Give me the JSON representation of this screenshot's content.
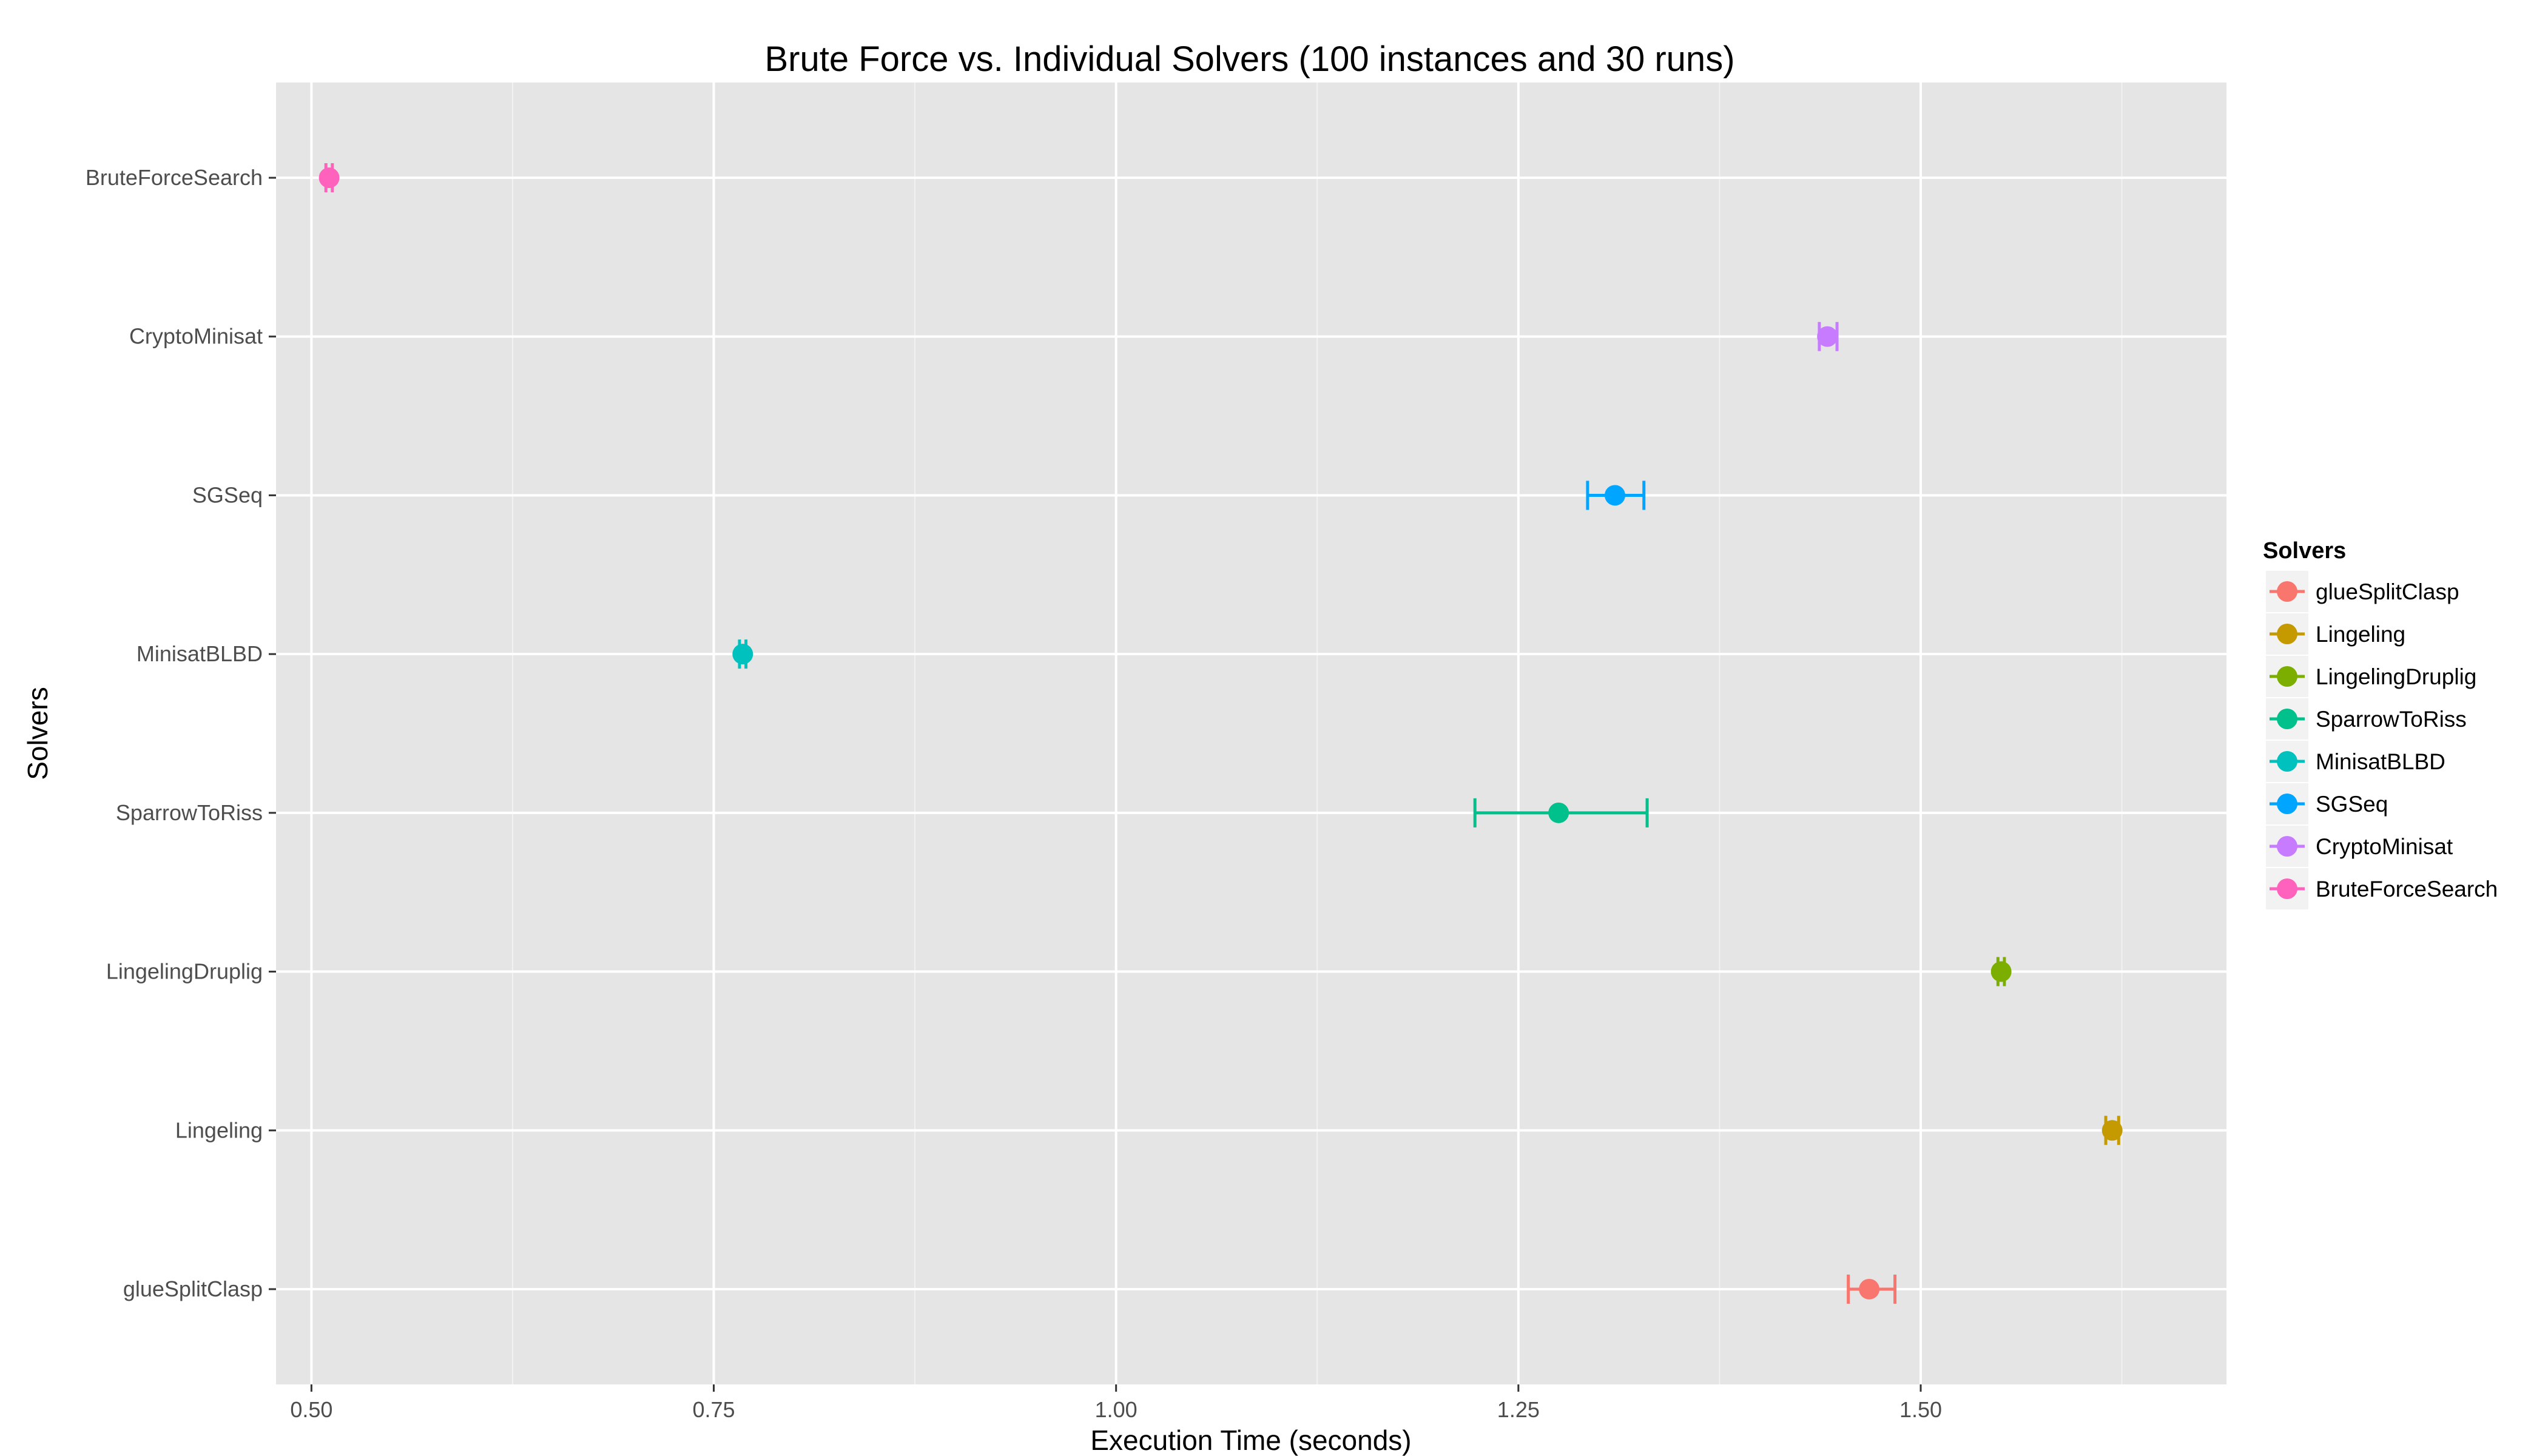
{
  "chart_data": {
    "type": "scatter",
    "title": "Brute Force vs. Individual Solvers (100 instances and 30 runs)",
    "xlabel": "Execution Time (seconds)",
    "ylabel": "Solvers",
    "xlim": [
      0.478,
      1.69
    ],
    "x_ticks": [
      0.5,
      0.75,
      1.0,
      1.25,
      1.5
    ],
    "x_tick_labels": [
      "0.50",
      "0.75",
      "1.00",
      "1.25",
      "1.50"
    ],
    "grid": true,
    "categories": [
      "BruteForceSearch",
      "CryptoMinisat",
      "SGSeq",
      "MinisatBLBD",
      "SparrowToRiss",
      "LingelingDruplig",
      "Lingeling",
      "glueSplitClasp"
    ],
    "series": [
      {
        "name": "glueSplitClasp",
        "color": "#F8766D",
        "value": 1.468,
        "error_low": 1.455,
        "error_high": 1.484
      },
      {
        "name": "Lingeling",
        "color": "#C49A00",
        "value": 1.619,
        "error_low": 1.615,
        "error_high": 1.623
      },
      {
        "name": "LingelingDruplig",
        "color": "#7CAE00",
        "value": 1.55,
        "error_low": 1.548,
        "error_high": 1.552
      },
      {
        "name": "SparrowToRiss",
        "color": "#00C08B",
        "value": 1.275,
        "error_low": 1.223,
        "error_high": 1.33
      },
      {
        "name": "MinisatBLBD",
        "color": "#00C1BE",
        "value": 0.768,
        "error_low": 0.766,
        "error_high": 0.77
      },
      {
        "name": "SGSeq",
        "color": "#00A5FF",
        "value": 1.31,
        "error_low": 1.293,
        "error_high": 1.328
      },
      {
        "name": "CryptoMinisat",
        "color": "#C77CFF",
        "value": 1.442,
        "error_low": 1.437,
        "error_high": 1.448
      },
      {
        "name": "BruteForceSearch",
        "color": "#FF62BC",
        "value": 0.511,
        "error_low": 0.509,
        "error_high": 0.513
      }
    ],
    "legend": {
      "title": "Solvers",
      "position": "right",
      "items": [
        "glueSplitClasp",
        "Lingeling",
        "LingelingDruplig",
        "SparrowToRiss",
        "MinisatBLBD",
        "SGSeq",
        "CryptoMinisat",
        "BruteForceSearch"
      ]
    },
    "colors": {
      "panel_background": "#E5E5E5",
      "grid_major": "#FFFFFF",
      "grid_minor": "#F2F2F2",
      "tick_text": "#4D4D4D",
      "legend_key_background": "#F2F2F2"
    }
  }
}
